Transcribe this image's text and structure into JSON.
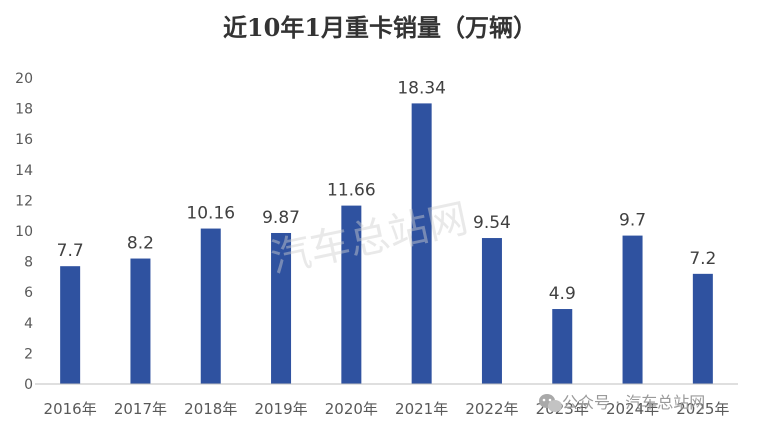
{
  "chart_data": {
    "type": "bar",
    "title": "近10年1月重卡销量（万辆）",
    "categories": [
      "2016年",
      "2017年",
      "2018年",
      "2019年",
      "2020年",
      "2021年",
      "2022年",
      "2023年",
      "2024年",
      "2025年"
    ],
    "values": [
      7.7,
      8.2,
      10.16,
      9.87,
      11.66,
      18.34,
      9.54,
      4.9,
      9.7,
      7.2
    ],
    "data_labels": [
      "7.7",
      "8.2",
      "10.16",
      "9.87",
      "11.66",
      "18.34",
      "9.54",
      "4.9",
      "9.7",
      "7.2"
    ],
    "yticks": [
      "0",
      "2",
      "4",
      "6",
      "8",
      "10",
      "12",
      "14",
      "16",
      "18",
      "20"
    ],
    "ylim": [
      0,
      20
    ],
    "xlabel": "",
    "ylabel": "",
    "grid": false,
    "bar_color": "#2f52a0"
  },
  "watermark": {
    "text": "汽车总站网",
    "wechat_label": "公众号 · 汽车总站网",
    "icon": "wechat-icon"
  }
}
